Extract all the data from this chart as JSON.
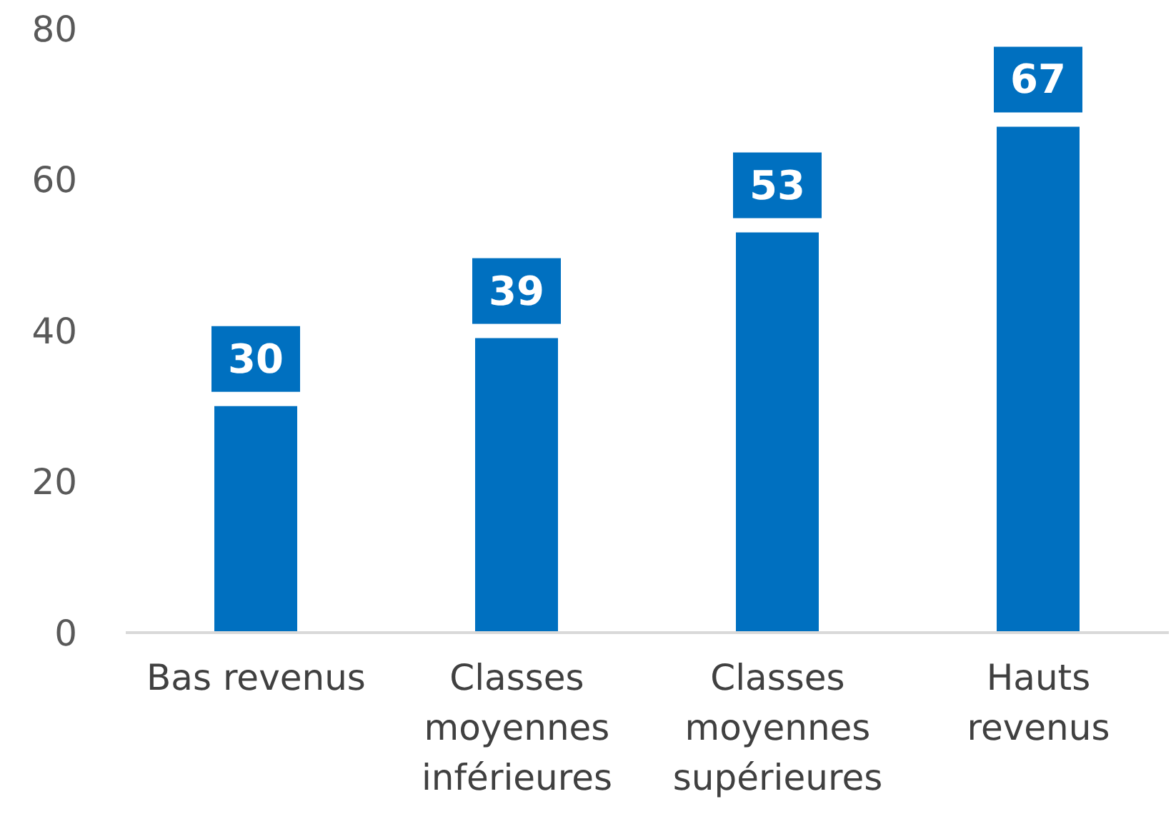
{
  "chart_data": {
    "type": "bar",
    "categories": [
      "Bas revenus",
      "Classes moyennes inférieures",
      "Classes moyennes supérieures",
      "Hauts revenus"
    ],
    "values": [
      30,
      39,
      53,
      67
    ],
    "color": "#0070c0",
    "ylim": [
      0,
      80
    ],
    "yticks": [
      0,
      20,
      40,
      60,
      80
    ],
    "grid": false,
    "data_labels": true
  }
}
